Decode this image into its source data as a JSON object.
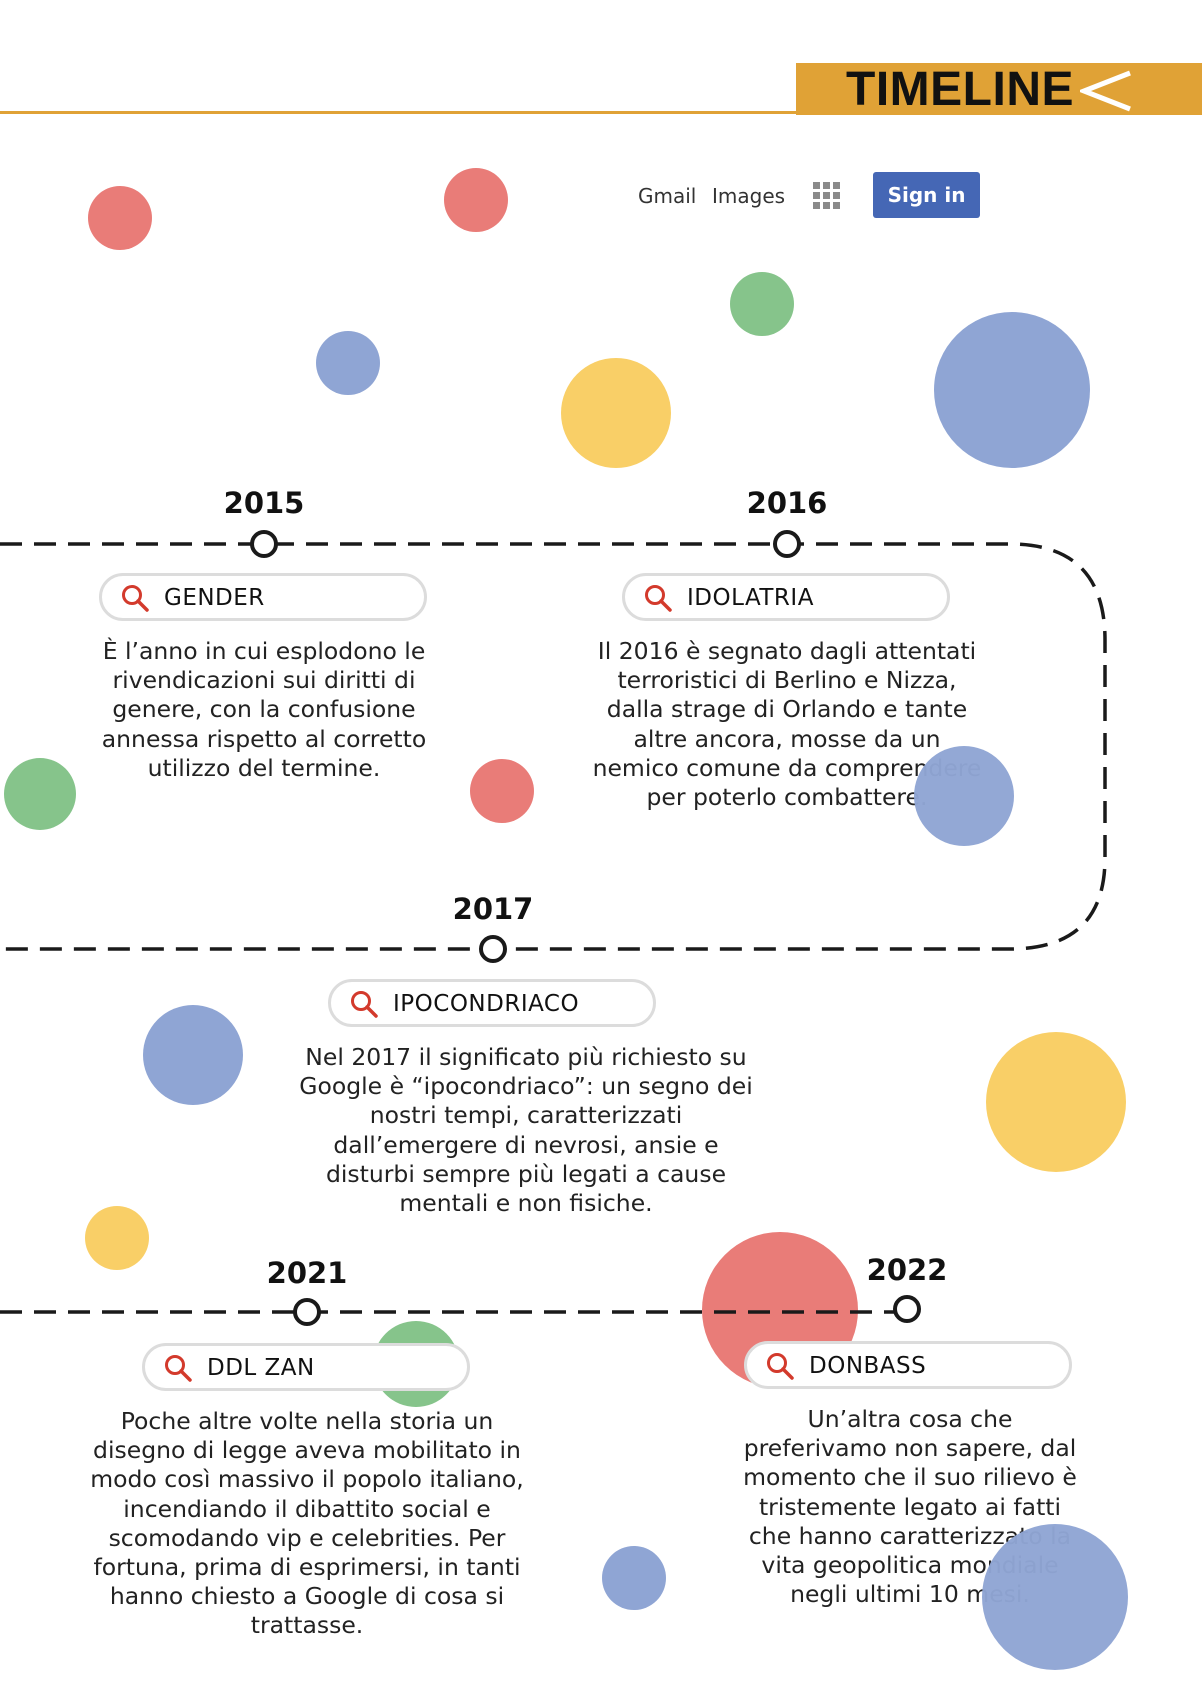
{
  "header": {
    "title": "TIMELINE"
  },
  "google_bar": {
    "gmail_label": "Gmail",
    "images_label": "Images",
    "apps_icon": "apps-grid-icon",
    "signin_label": "Sign in"
  },
  "colors": {
    "accent": "#e0a236",
    "red": "#e97c78",
    "blue": "#8fa5d4",
    "green": "#86c48b",
    "yellow": "#f9cf67",
    "signin": "#4567b5",
    "search_icon": "#d33a2c"
  },
  "events": [
    {
      "year": "2015",
      "query": "GENDER",
      "text": "È l’anno in cui esplodono le rivendicazioni sui diritti di genere, con la confusione annessa rispetto al corretto utilizzo del termine."
    },
    {
      "year": "2016",
      "query": "IDOLATRIA",
      "text": "Il 2016 è segnato dagli attentati terroristici di Berlino e Nizza, dalla strage di Orlando e tante altre ancora, mosse da un nemico comune da comprendere per poterlo combattere."
    },
    {
      "year": "2017",
      "query": "IPOCONDRIACO",
      "text": "Nel 2017 il significato più richiesto su Google è “ipocondriaco”: un segno dei nostri tempi, caratterizzati dall’emergere di nevrosi, ansie e disturbi sempre più legati a cause mentali e non fisiche."
    },
    {
      "year": "2021",
      "query": "DDL ZAN",
      "text": "Poche altre volte nella storia un disegno di legge aveva mobilitato in modo così massivo il popolo italiano, incendiando il dibattito social e scomodando vip e celebrities. Per fortuna, prima di esprimersi, in tanti hanno chiesto a Google di cosa si trattasse."
    },
    {
      "year": "2022",
      "query": "DONBASS",
      "text": "Un’altra cosa che preferivamo non sapere, dal momento che il suo rilievo è tristemente legato ai fatti che hanno caratterizzato la vita geopolitica mondiale negli ultimi 10 mesi."
    }
  ]
}
